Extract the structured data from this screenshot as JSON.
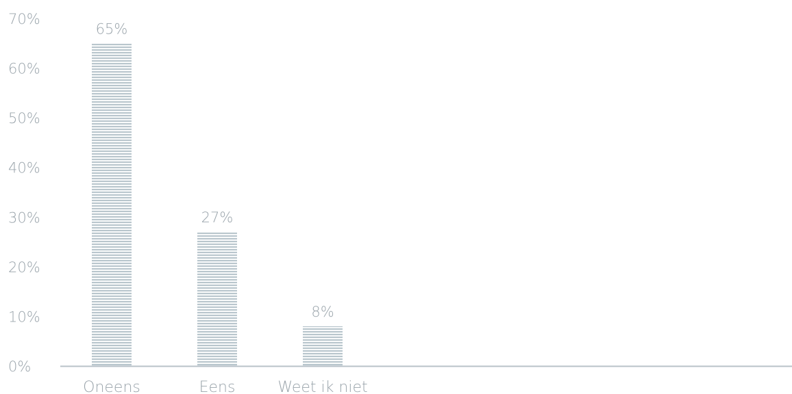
{
  "chart_data": {
    "type": "bar",
    "categories": [
      "Oneens",
      "Eens",
      "Weet ik niet"
    ],
    "values": [
      65,
      27,
      8
    ],
    "value_labels": [
      "65%",
      "27%",
      "8%"
    ],
    "ylim": [
      0,
      70
    ],
    "yticks": [
      0,
      10,
      20,
      30,
      40,
      50,
      60,
      70
    ],
    "ytick_labels": [
      "0%",
      "10%",
      "20%",
      "30%",
      "40%",
      "50%",
      "60%",
      "70%"
    ],
    "grid": false,
    "colors": {
      "bar": "#b9c6cd",
      "bar_stripe": "#ffffff",
      "axis": "#b8c2c8",
      "text": "#9aa4ab"
    }
  }
}
